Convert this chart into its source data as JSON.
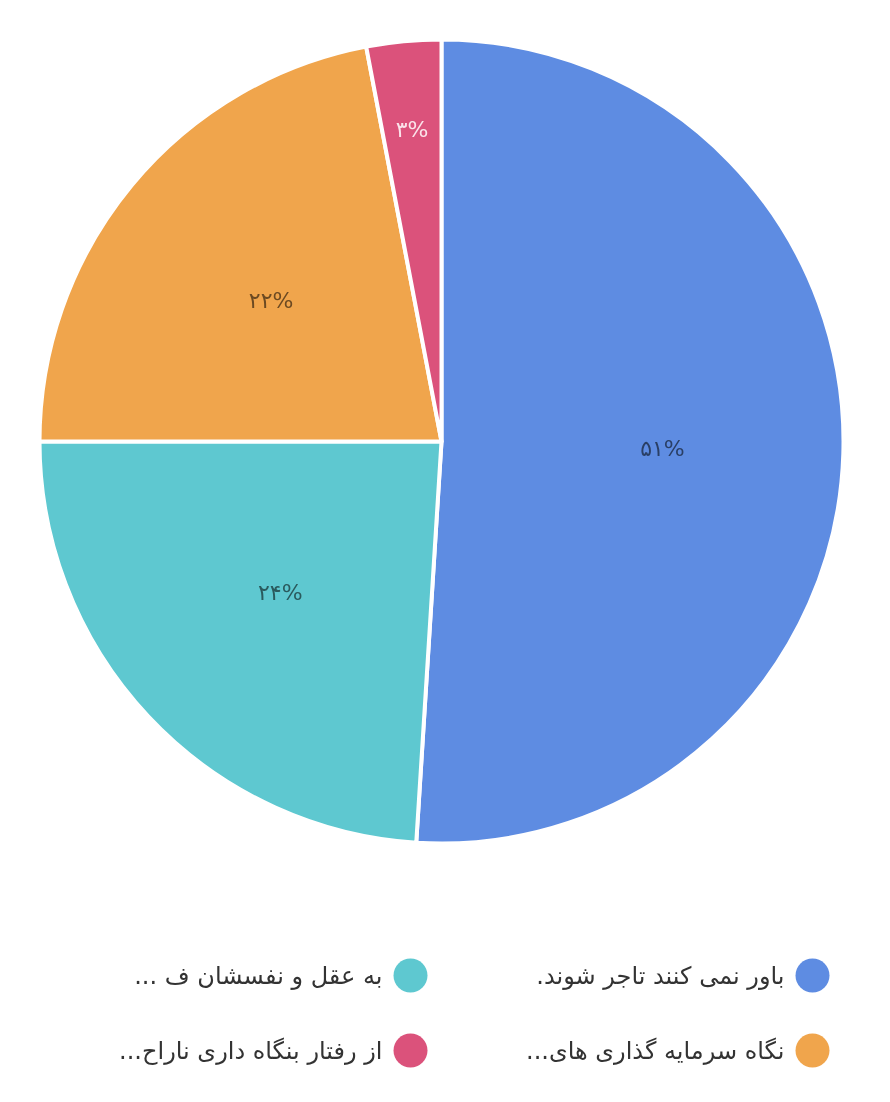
{
  "chart_data": {
    "type": "pie",
    "categories": [
      "باور نمی کنند تاجر شوند.",
      "به عقل و نفسشان ف ...",
      "نگاه سرمایه گذاری های...",
      "از رفتار بنگاه داری ناراح..."
    ],
    "values": [
      51,
      24,
      22,
      3
    ],
    "value_labels": [
      "۵۱%",
      "۲۴%",
      "۲۲%",
      "۳%"
    ],
    "colors": [
      "#5e8ce2",
      "#5ec8d0",
      "#f0a54c",
      "#db527b"
    ],
    "legend": "bottom"
  }
}
